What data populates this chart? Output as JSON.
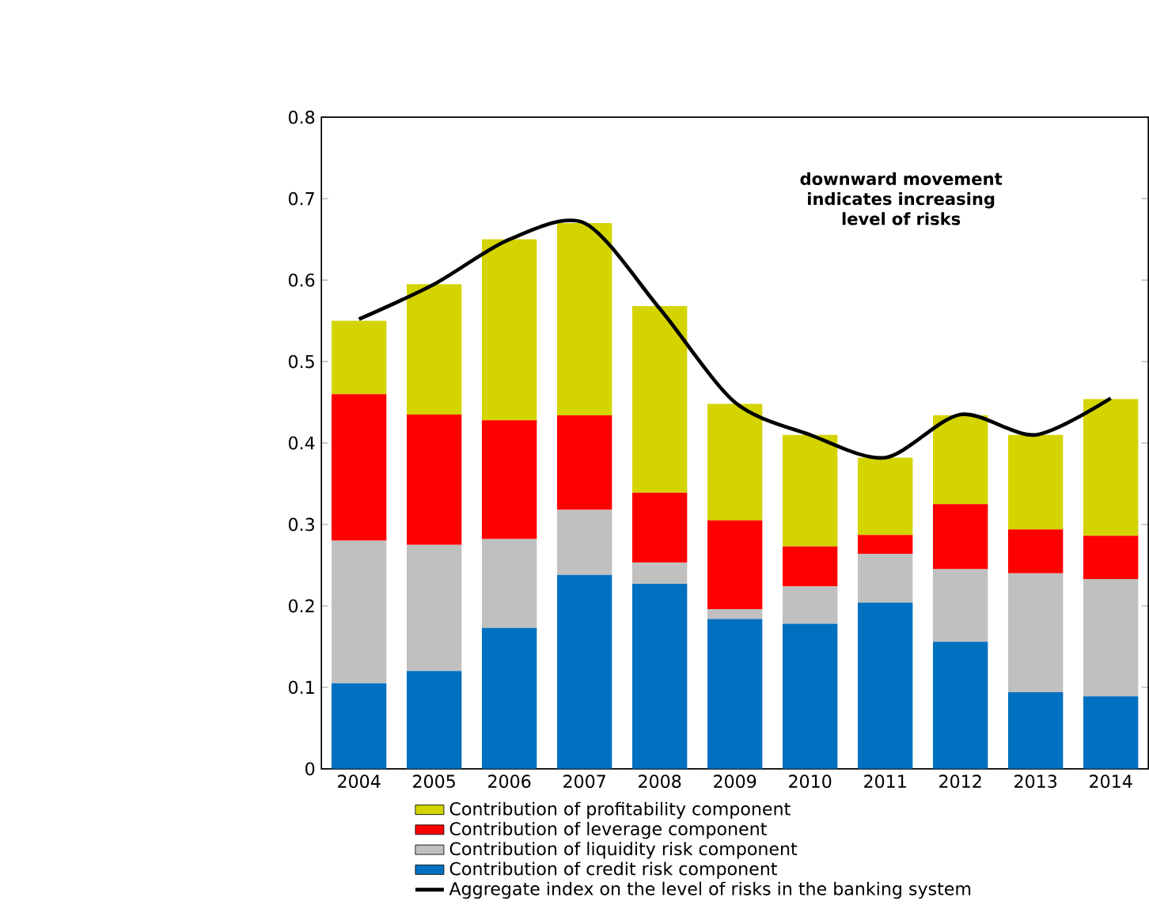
{
  "chart_data": {
    "type": "bar",
    "stacked": true,
    "categories": [
      "2004",
      "2005",
      "2006",
      "2007",
      "2008",
      "2009",
      "2010",
      "2011",
      "2012",
      "2013",
      "2014"
    ],
    "series": [
      {
        "name": "Contribution of credit risk component",
        "color": "#0070c0",
        "values": [
          0.105,
          0.12,
          0.173,
          0.238,
          0.227,
          0.184,
          0.178,
          0.204,
          0.156,
          0.094,
          0.089
        ]
      },
      {
        "name": "Contribution of liquidity risk component",
        "color": "#c0c0c0",
        "values": [
          0.175,
          0.155,
          0.109,
          0.08,
          0.026,
          0.012,
          0.046,
          0.06,
          0.089,
          0.146,
          0.144
        ]
      },
      {
        "name": "Contribution of leverage component",
        "color": "#ff0000",
        "values": [
          0.18,
          0.16,
          0.146,
          0.116,
          0.086,
          0.109,
          0.049,
          0.023,
          0.08,
          0.054,
          0.053
        ]
      },
      {
        "name": "Contribution of profitability component",
        "color": "#d4d400",
        "values": [
          0.09,
          0.16,
          0.222,
          0.236,
          0.229,
          0.143,
          0.137,
          0.095,
          0.109,
          0.116,
          0.168
        ]
      },
      {
        "name": "Aggregate index on the  level of risks in the banking system",
        "type": "line",
        "color": "#000000",
        "values": [
          0.552,
          0.595,
          0.65,
          0.67,
          0.565,
          0.45,
          0.41,
          0.382,
          0.435,
          0.41,
          0.455
        ]
      }
    ],
    "ylim": [
      0,
      0.8
    ],
    "yticks": [
      0,
      0.1,
      0.2,
      0.3,
      0.4,
      0.5,
      0.6,
      0.7,
      0.8
    ],
    "grid": false,
    "legend": "bottom",
    "annotations": [
      "downward movement indicates increasing level of risks"
    ]
  }
}
